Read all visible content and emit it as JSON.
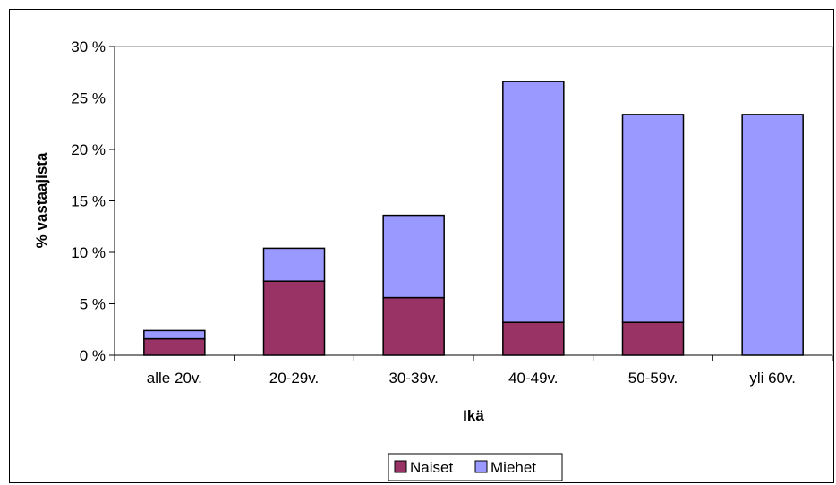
{
  "chart_data": {
    "type": "bar",
    "stacked": true,
    "categories": [
      "alle 20v.",
      "20-29v.",
      "30-39v.",
      "40-49v.",
      "50-59v.",
      "yli 60v."
    ],
    "series": [
      {
        "name": "Naiset",
        "color": "#993366",
        "values": [
          1.6,
          7.2,
          5.6,
          3.2,
          3.2,
          0
        ]
      },
      {
        "name": "Miehet",
        "color": "#9999ff",
        "values": [
          0.8,
          3.2,
          8.0,
          23.4,
          20.2,
          23.4
        ]
      }
    ],
    "xlabel": "Ikä",
    "ylabel": "% vastaajista",
    "ylim": [
      0,
      30
    ],
    "yticks": [
      0,
      5,
      10,
      15,
      20,
      25,
      30
    ],
    "ytick_labels": [
      "0 %",
      "5 %",
      "10 %",
      "15 %",
      "20 %",
      "25 %",
      "30 %"
    ],
    "grid": false,
    "legend_position": "bottom"
  }
}
